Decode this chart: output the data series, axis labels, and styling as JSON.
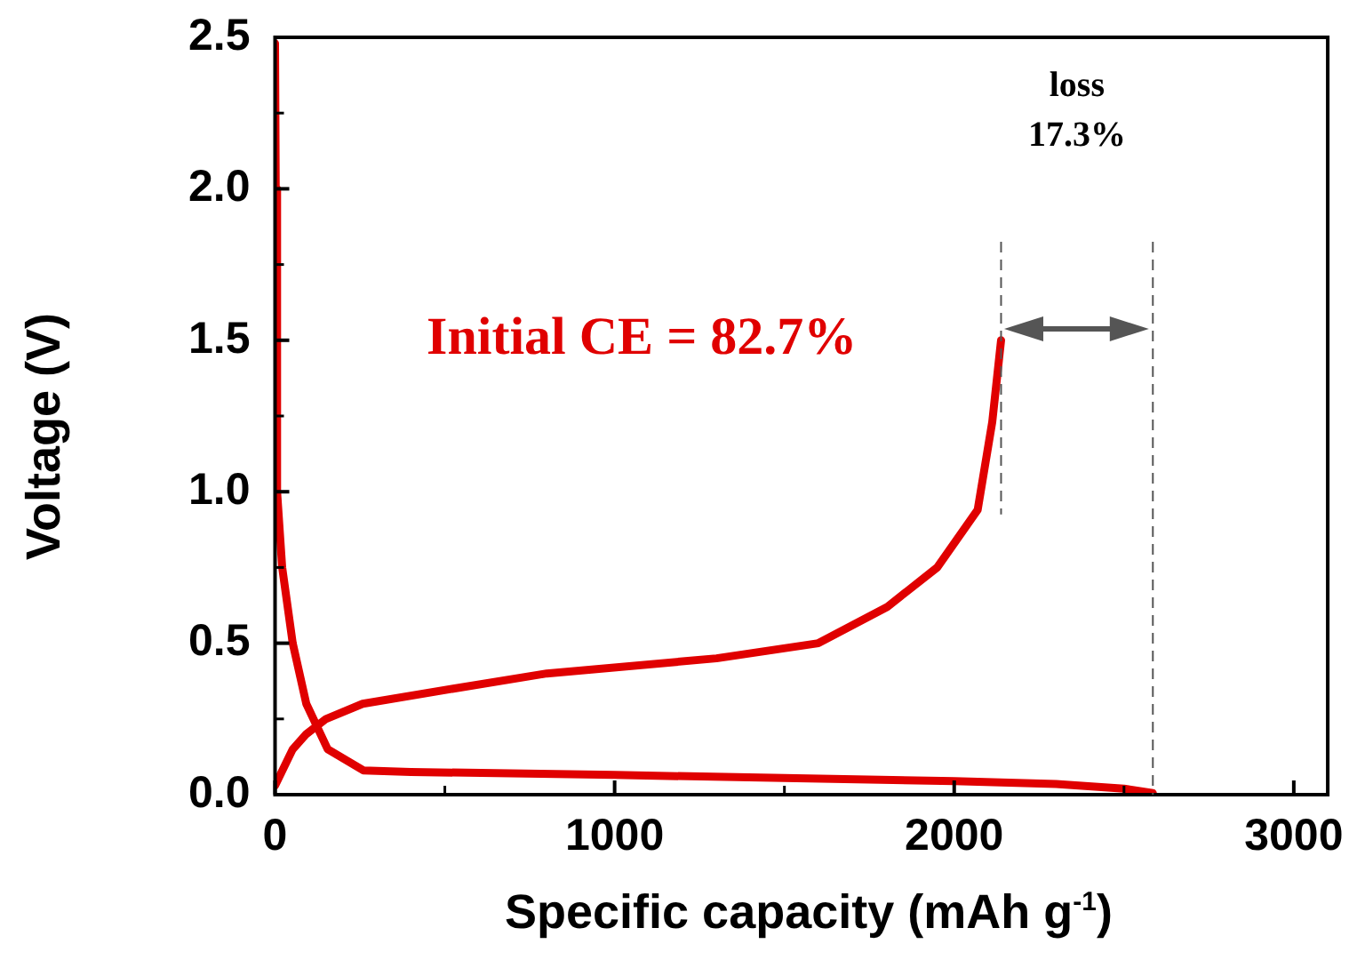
{
  "chart_data": {
    "type": "line",
    "xlabel": "Specific capacity (mAh g$^{-1}$)",
    "ylabel": "Voltage (V)",
    "xlim": [
      0,
      3100
    ],
    "xticks": [
      0,
      1000,
      2000,
      3000
    ],
    "ylim": [
      0,
      2.5
    ],
    "yticks": [
      {
        "value": 0,
        "label": "0.0"
      },
      {
        "value": 0.5,
        "label": "0.5"
      },
      {
        "value": 1,
        "label": "1.0"
      },
      {
        "value": 1.5,
        "label": "1.5"
      },
      {
        "value": 2,
        "label": "2.0"
      },
      {
        "value": 2.5,
        "label": "2.5"
      }
    ],
    "grid": false,
    "legend": false,
    "marker": "none",
    "line_style": "solid",
    "series": [
      {
        "color": "#e00000",
        "x": [
          0,
          2,
          6,
          21,
          52,
          92,
          155,
          260,
          400,
          1000,
          1500,
          2000,
          2300,
          2500,
          2585
        ],
        "values": [
          2.48,
          2.0,
          1.0,
          0.75,
          0.5,
          0.3,
          0.15,
          0.08,
          0.075,
          0.065,
          0.055,
          0.045,
          0.035,
          0.02,
          0.005
        ]
      },
      {
        "color": "#e00000",
        "x": [
          0,
          52,
          92,
          150,
          258,
          525,
          800,
          1300,
          1600,
          1803,
          1950,
          2069,
          2112,
          2138
        ],
        "values": [
          0.03,
          0.15,
          0.2,
          0.25,
          0.3,
          0.35,
          0.4,
          0.45,
          0.5,
          0.62,
          0.75,
          0.94,
          1.23,
          1.5
        ]
      }
    ],
    "ref_lines": [
      {
        "axis": "x",
        "value": 2138,
        "color": "#555555",
        "line_style": "dashed"
      },
      {
        "axis": "x",
        "value": 2585,
        "color": "#555555",
        "line_style": "dashed"
      }
    ],
    "annotations": [
      "Initial CE = 82.7%",
      "loss",
      "17.3%"
    ]
  }
}
